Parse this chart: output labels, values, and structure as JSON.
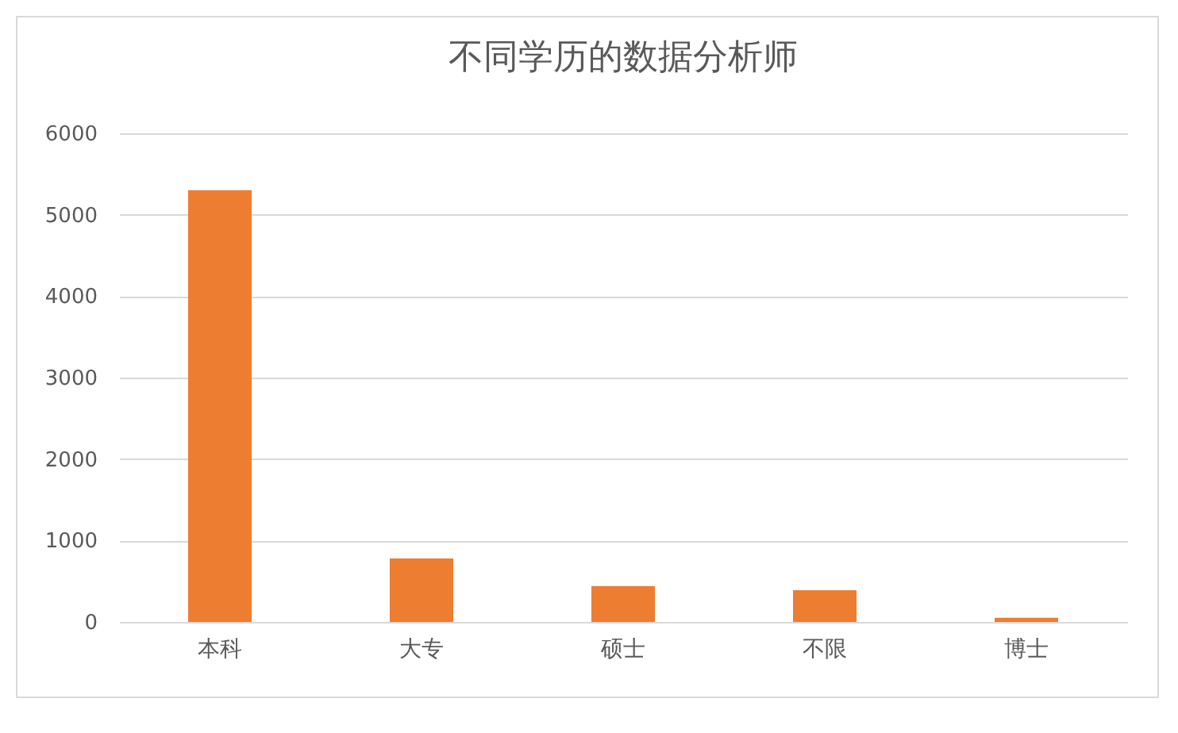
{
  "chart_data": {
    "type": "bar",
    "title": "不同学历的数据分析师",
    "categories": [
      "本科",
      "大专",
      "硕士",
      "不限",
      "博士"
    ],
    "values": [
      5300,
      780,
      440,
      390,
      50
    ],
    "color": "#ed7d31",
    "ylim": [
      0,
      6000
    ],
    "yticks": [
      0,
      1000,
      2000,
      3000,
      4000,
      5000,
      6000
    ],
    "grid": "y"
  }
}
